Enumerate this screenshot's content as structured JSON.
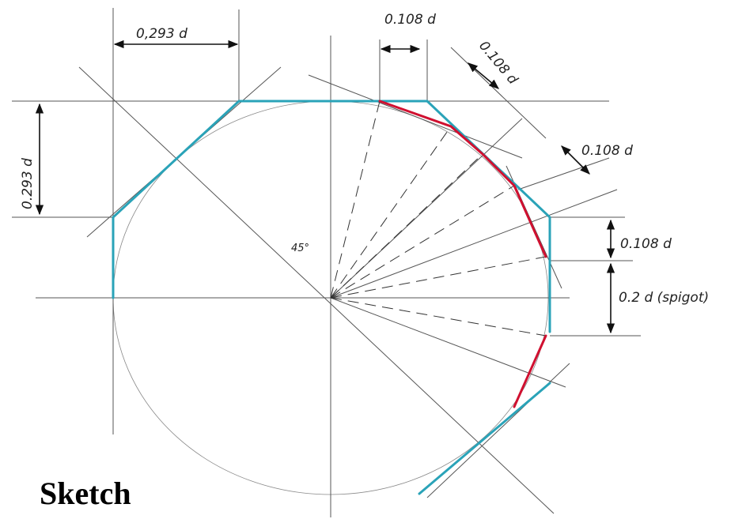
{
  "dimensions": {
    "top_width": "0,293 d",
    "left_height": "0.293 d",
    "top_step": "0.108 d",
    "diag_step": "0.108 d",
    "right_step": "0.108 d",
    "vertical_step": "0.108 d",
    "spigot": "0.2 d (spigot)"
  },
  "angle_label": "45°",
  "caption": "Sketch"
}
